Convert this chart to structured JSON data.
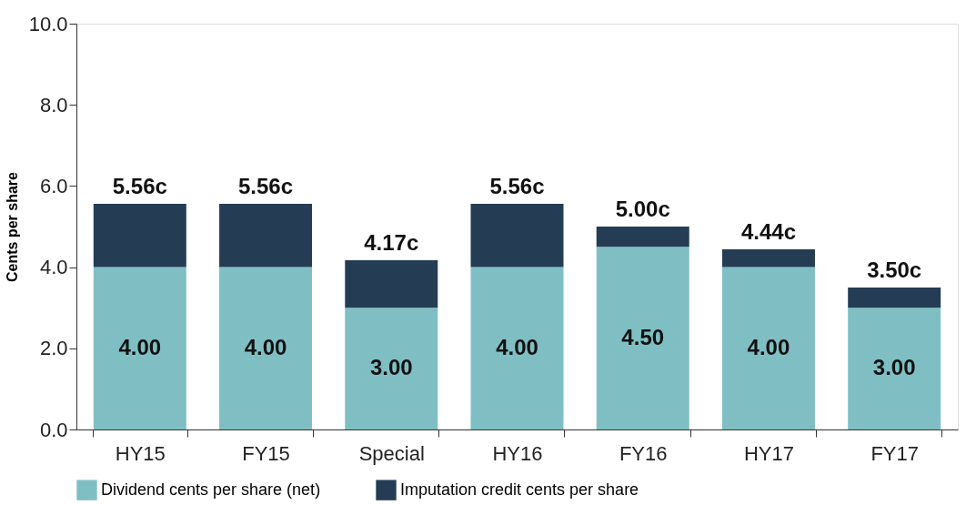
{
  "chart_data": {
    "type": "bar",
    "stacked": true,
    "ylabel": "Cents per share",
    "categories": [
      "HY15",
      "FY15",
      "Special",
      "HY16",
      "FY16",
      "HY17",
      "FY17"
    ],
    "series": [
      {
        "name": "Dividend cents per share (net)",
        "color": "#7fbfc4",
        "values": [
          4.0,
          4.0,
          3.0,
          4.0,
          4.5,
          4.0,
          3.0
        ],
        "value_labels": [
          "4.00",
          "4.00",
          "3.00",
          "4.00",
          "4.50",
          "4.00",
          "3.00"
        ]
      },
      {
        "name": "Imputation credit cents per share",
        "color": "#243d55",
        "values": [
          1.56,
          1.56,
          1.17,
          1.56,
          0.5,
          0.44,
          0.5
        ]
      }
    ],
    "totals": [
      "5.56c",
      "5.56c",
      "4.17c",
      "5.56c",
      "5.00c",
      "4.44c",
      "3.50c"
    ],
    "ylim": [
      0,
      10
    ],
    "yticks": [
      {
        "value": 0,
        "label": "0.0"
      },
      {
        "value": 2,
        "label": "2.0"
      },
      {
        "value": 4,
        "label": "4.0"
      },
      {
        "value": 6,
        "label": "6.0"
      },
      {
        "value": 8,
        "label": "8.0"
      },
      {
        "value": 10,
        "label": "10.0"
      }
    ],
    "grid": false,
    "legend": "bottom"
  }
}
